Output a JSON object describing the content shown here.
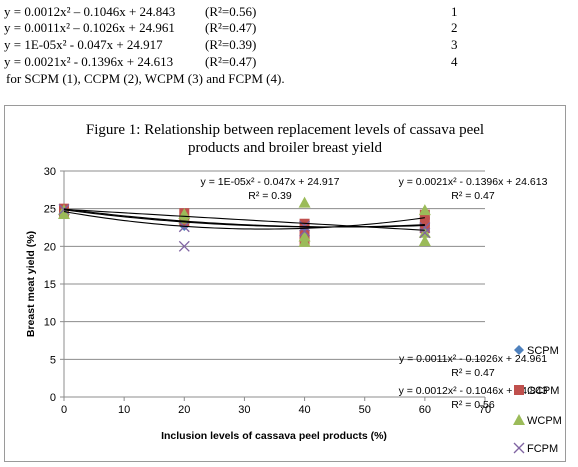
{
  "equations": [
    {
      "eq": "y = 0.0012x² – 0.1046x + 24.843",
      "r2": "(R²=0.56)",
      "num": "1"
    },
    {
      "eq": "y = 0.0011x² – 0.1026x + 24.961",
      "r2": "(R²=0.47)",
      "num": "2"
    },
    {
      "eq": " y = 1E-05x² - 0.047x + 24.917",
      "r2": "(R²=0.39)",
      "num": "3"
    },
    {
      "eq": "y = 0.0021x² - 0.1396x + 24.613",
      "r2": "(R²=0.47)",
      "num": "4"
    }
  ],
  "caption": "for SCPM (1), CCPM (2), WCPM (3) and FCPM (4).",
  "chart_data": {
    "type": "scatter",
    "title_line1": "Figure 1: Relationship between replacement levels of cassava peel",
    "title_line2": "products and broiler breast yield",
    "xlabel": "Inclusion levels of cassava peel products (%)",
    "ylabel": "Breast meat yield (%)",
    "xlim": [
      0,
      70
    ],
    "ylim": [
      0,
      30
    ],
    "xticks": [
      "0",
      "10",
      "20",
      "30",
      "40",
      "50",
      "60",
      "70"
    ],
    "yticks": [
      "0",
      "5",
      "10",
      "15",
      "20",
      "25",
      "30"
    ],
    "grid": "horizontal",
    "legend_position": "right",
    "series": [
      {
        "name": "SCPM",
        "marker": "diamond",
        "color": "#4F81BD",
        "points": [
          [
            0,
            24.9
          ],
          [
            20,
            23.0
          ],
          [
            20,
            22.7
          ],
          [
            40,
            22.0
          ],
          [
            40,
            21.6
          ],
          [
            60,
            23.0
          ],
          [
            60,
            22.5
          ]
        ],
        "trend": [
          0.0012,
          -0.1046,
          24.843
        ]
      },
      {
        "name": "CCPM",
        "marker": "square",
        "color": "#C0504D",
        "points": [
          [
            0,
            25.0
          ],
          [
            0,
            24.6
          ],
          [
            20,
            24.4
          ],
          [
            20,
            23.3
          ],
          [
            40,
            23.0
          ],
          [
            40,
            21.5
          ],
          [
            40,
            20.8
          ],
          [
            60,
            24.2
          ],
          [
            60,
            23.3
          ],
          [
            60,
            22.4
          ]
        ],
        "trend": [
          0.0011,
          -0.1026,
          24.961
        ]
      },
      {
        "name": "WCPM",
        "marker": "triangle",
        "color": "#9BBB59",
        "points": [
          [
            0,
            24.8
          ],
          [
            0,
            24.3
          ],
          [
            20,
            24.3
          ],
          [
            20,
            23.7
          ],
          [
            40,
            25.8
          ],
          [
            40,
            21.3
          ],
          [
            40,
            20.6
          ],
          [
            60,
            24.8
          ],
          [
            60,
            21.8
          ],
          [
            60,
            20.7
          ]
        ],
        "trend": [
          1e-05,
          -0.047,
          24.917
        ]
      },
      {
        "name": "FCPM",
        "marker": "x",
        "color": "#8064A2",
        "points": [
          [
            0,
            24.9
          ],
          [
            20,
            20.0
          ],
          [
            20,
            22.6
          ],
          [
            40,
            22.7
          ],
          [
            40,
            22.0
          ],
          [
            60,
            22.5
          ],
          [
            60,
            21.8
          ]
        ],
        "trend": [
          0.0021,
          -0.1396,
          24.613
        ]
      }
    ],
    "annotations": [
      {
        "eq": "y = 1E-05x² - 0.047x + 24.917",
        "r2": "R² = 0.39"
      },
      {
        "eq": "y = 0.0021x² - 0.1396x + 24.613",
        "r2": "R² = 0.47"
      },
      {
        "eq": "y = 0.0011x² - 0.1026x + 24.961",
        "r2": "R² = 0.47"
      },
      {
        "eq": "y = 0.0012x² - 0.1046x + 24.843",
        "r2": "R² = 0.56"
      }
    ]
  }
}
